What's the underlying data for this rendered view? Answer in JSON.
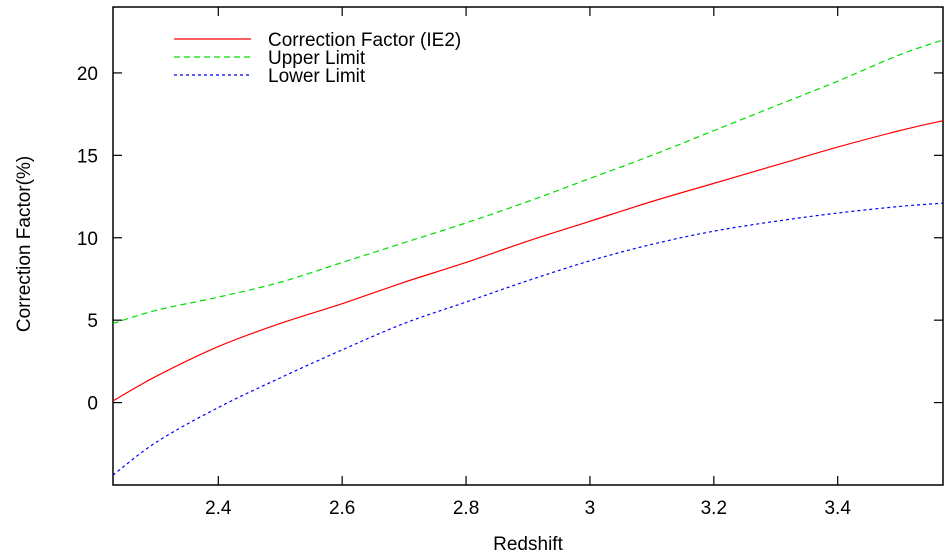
{
  "chart_data": {
    "type": "line",
    "title": "",
    "xlabel": "Redshift",
    "ylabel": "Correction Factor(%)",
    "xlim": [
      2.23,
      3.57
    ],
    "ylim": [
      -5,
      24
    ],
    "xticks": [
      2.4,
      2.6,
      2.8,
      3,
      3.2,
      3.4
    ],
    "xtick_labels": [
      "2.4",
      "2.6",
      "2.8",
      "3",
      "3.2",
      "3.4"
    ],
    "yticks": [
      0,
      5,
      10,
      15,
      20
    ],
    "ytick_labels": [
      "0",
      "5",
      "10",
      "15",
      "20"
    ],
    "grid": false,
    "legend": "top-left",
    "series": [
      {
        "name": "Correction Factor (IE2)",
        "color": "#ff0000",
        "dash": "solid",
        "x": [
          2.23,
          2.3,
          2.4,
          2.5,
          2.6,
          2.7,
          2.8,
          2.9,
          3.0,
          3.1,
          3.2,
          3.3,
          3.4,
          3.5,
          3.57
        ],
        "y": [
          0.1,
          1.6,
          3.4,
          4.8,
          6.0,
          7.3,
          8.5,
          9.8,
          11.0,
          12.2,
          13.3,
          14.4,
          15.5,
          16.5,
          17.1
        ]
      },
      {
        "name": "Upper Limit",
        "color": "#00dd00",
        "dash": "dashed",
        "x": [
          2.23,
          2.3,
          2.4,
          2.5,
          2.6,
          2.7,
          2.8,
          2.9,
          3.0,
          3.1,
          3.2,
          3.3,
          3.4,
          3.5,
          3.57
        ],
        "y": [
          4.8,
          5.6,
          6.4,
          7.3,
          8.5,
          9.7,
          10.9,
          12.2,
          13.6,
          15.0,
          16.5,
          18.0,
          19.5,
          21.1,
          22.0
        ]
      },
      {
        "name": "Lower Limit",
        "color": "#0000ff",
        "dash": "dotted",
        "x": [
          2.23,
          2.3,
          2.4,
          2.5,
          2.6,
          2.7,
          2.8,
          2.9,
          3.0,
          3.1,
          3.2,
          3.3,
          3.4,
          3.5,
          3.57
        ],
        "y": [
          -4.4,
          -2.4,
          -0.3,
          1.5,
          3.2,
          4.8,
          6.1,
          7.4,
          8.6,
          9.6,
          10.4,
          11.0,
          11.5,
          11.9,
          12.1
        ]
      }
    ]
  }
}
